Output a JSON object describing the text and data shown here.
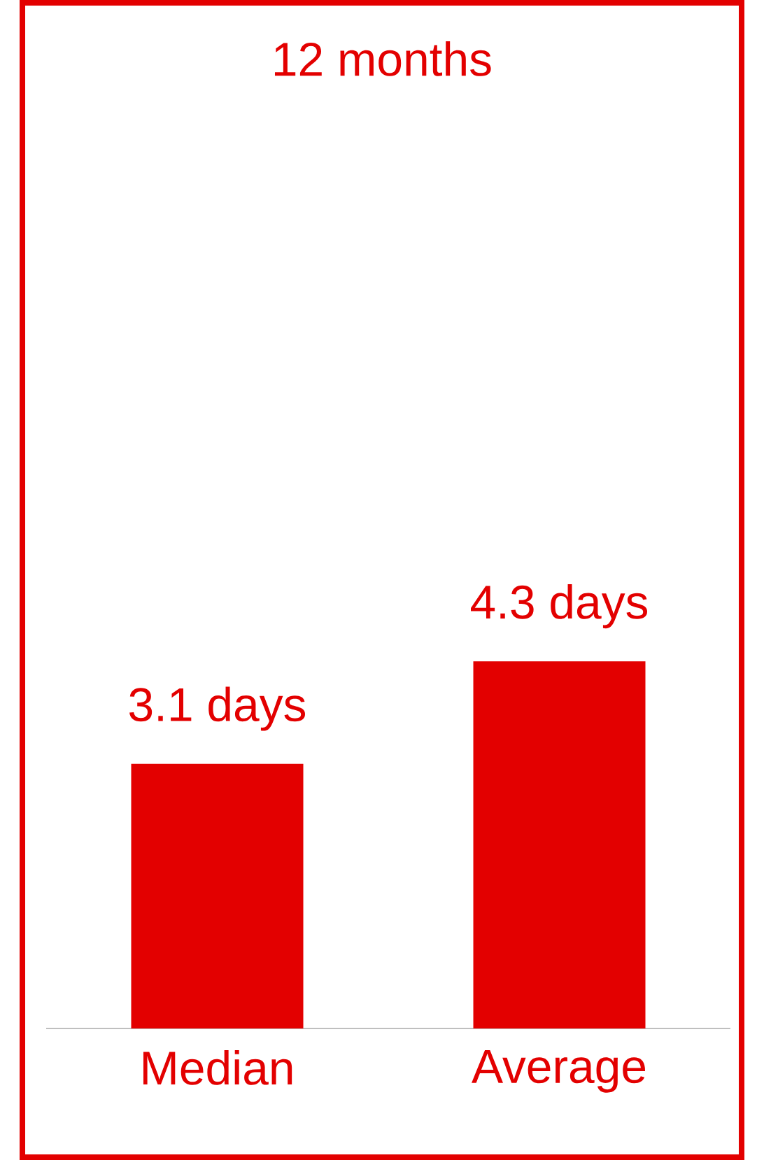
{
  "chart_data": {
    "type": "bar",
    "title": "12 months",
    "categories": [
      "Median",
      "Average"
    ],
    "values": [
      3.1,
      4.3
    ],
    "value_labels": [
      "3.1 days",
      "4.3 days"
    ],
    "color": "#e30000"
  }
}
